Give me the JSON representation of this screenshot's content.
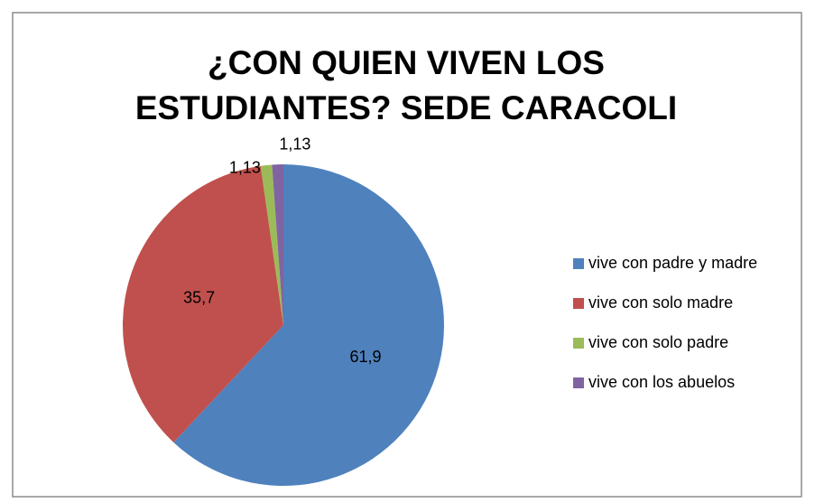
{
  "chart_data": {
    "type": "pie",
    "title": [
      "¿CON QUIEN VIVEN LOS",
      "ESTUDIANTES? SEDE CARACOLI"
    ],
    "categories": [
      "vive con padre y madre",
      "vive con solo madre",
      "vive con solo padre",
      "vive con los abuelos"
    ],
    "values": [
      61.9,
      35.7,
      1.13,
      1.13
    ],
    "value_labels": [
      "61,9",
      "35,7",
      "1,13",
      "1,13"
    ],
    "colors": [
      "#4f81bd",
      "#c0504d",
      "#9bbb59",
      "#8064a2"
    ],
    "legend": "right"
  }
}
